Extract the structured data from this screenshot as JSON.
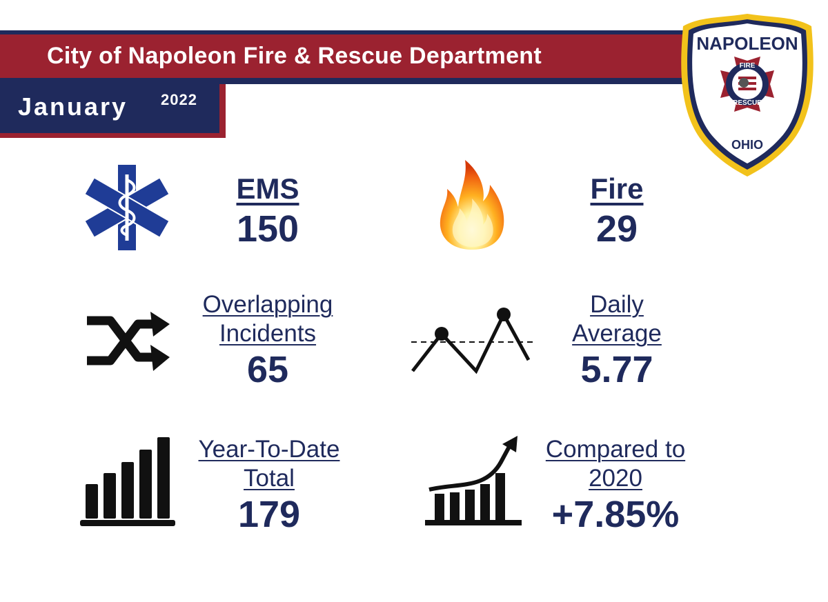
{
  "header": {
    "title": "City of Napoleon Fire & Rescue Department",
    "month": "January",
    "year": "2022"
  },
  "badge": {
    "top_text": "NAPOLEON",
    "fire_text": "FIRE",
    "rescue_text": "RESCUE",
    "state_text": "OHIO",
    "icon": "fire-rescue-badge"
  },
  "colors": {
    "navy": "#1f2a5c",
    "red": "#9b2230",
    "gold": "#f2c21b",
    "ems_blue": "#1f3c96"
  },
  "stats": {
    "ems": {
      "label": "EMS",
      "value": "150",
      "icon": "star-of-life-icon"
    },
    "fire": {
      "label": "Fire",
      "value": "29",
      "icon": "flame-icon"
    },
    "overlap": {
      "label_line1": "Overlapping",
      "label_line2": "Incidents",
      "value": "65",
      "icon": "shuffle-icon"
    },
    "daily": {
      "label_line1": "Daily",
      "label_line2": "Average",
      "value": "5.77",
      "icon": "average-line-icon"
    },
    "ytd": {
      "label_line1": "Year-To-Date",
      "label_line2": "Total",
      "value": "179",
      "icon": "bar-chart-icon"
    },
    "compared": {
      "label_line1": "Compared to",
      "label_line2": "2020",
      "value": "+7.85%",
      "icon": "growth-chart-icon"
    }
  }
}
